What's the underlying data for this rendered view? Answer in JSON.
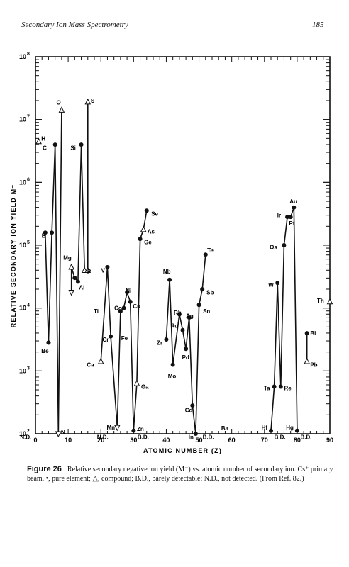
{
  "header": {
    "title": "Secondary Ion Mass Spectrometry",
    "page": "185"
  },
  "caption": {
    "label": "Figure 26",
    "text": "Relative secondary negative ion yield (M⁻) vs. atomic number of secondary ion. Cs⁺ primary beam. •, pure element; △, compound; B.D., barely detectable; N.D., not detected. (From Ref. 82.)"
  },
  "chart_data": {
    "type": "line",
    "xlabel": "ATOMIC NUMBER (Z)",
    "ylabel": "RELATIVE SECONDARY ION YIELD M⁻",
    "xlim": [
      0,
      90
    ],
    "ylim_exp": [
      2,
      8
    ],
    "yscale": "log",
    "x_ticks": [
      0,
      10,
      20,
      30,
      40,
      50,
      60,
      70,
      80,
      90
    ],
    "y_ticks": [
      {
        "base": "10",
        "exp": "2"
      },
      {
        "base": "10",
        "exp": "3"
      },
      {
        "base": "10",
        "exp": "4"
      },
      {
        "base": "10",
        "exp": "5"
      },
      {
        "base": "10",
        "exp": "6"
      },
      {
        "base": "10",
        "exp": "7"
      },
      {
        "base": "10",
        "exp": "8"
      }
    ],
    "series": [
      {
        "points": [
          {
            "z": 4,
            "logy": 3.45,
            "m": "dot"
          },
          {
            "z": 5,
            "logy": 5.2,
            "m": "dot"
          },
          {
            "z": 6,
            "logy": 6.6,
            "m": "dot"
          },
          {
            "z": 7,
            "logy": 2.0,
            "m": "down"
          },
          {
            "z": 8,
            "logy": 7.15,
            "m": "tri"
          }
        ]
      },
      {
        "points": [
          {
            "z": 3,
            "logy": 5.2,
            "m": "dot"
          },
          {
            "z": 4,
            "logy": 3.45,
            "m": "dot"
          }
        ]
      },
      {
        "points": [
          {
            "z": 11,
            "logy": 4.65,
            "m": "tri"
          },
          {
            "z": 11,
            "logy": 4.25,
            "m": "down"
          }
        ]
      },
      {
        "points": [
          {
            "z": 11,
            "logy": 4.65,
            "m": "tri"
          },
          {
            "z": 12,
            "logy": 4.48,
            "m": "dot"
          },
          {
            "z": 13,
            "logy": 4.42,
            "m": "dot"
          },
          {
            "z": 14,
            "logy": 6.6,
            "m": "dot"
          },
          {
            "z": 15,
            "logy": 4.6,
            "m": "tri"
          }
        ]
      },
      {
        "points": [
          {
            "z": 16,
            "logy": 7.28,
            "m": "tri"
          },
          {
            "z": 16,
            "logy": 4.6,
            "m": "tri"
          }
        ]
      },
      {
        "points": [
          {
            "z": 20,
            "logy": 3.15,
            "m": "tri"
          },
          {
            "z": 22,
            "logy": 4.65,
            "m": "dot"
          },
          {
            "z": 23,
            "logy": 3.55,
            "m": "dot"
          },
          {
            "z": 25,
            "logy": 2.1,
            "m": "down"
          },
          {
            "z": 26,
            "logy": 3.95,
            "m": "dot"
          },
          {
            "z": 27,
            "logy": 4.0,
            "m": "dot"
          },
          {
            "z": 28,
            "logy": 4.25,
            "m": "dot"
          },
          {
            "z": 29,
            "logy": 4.1,
            "m": "dot"
          },
          {
            "z": 30,
            "logy": 2.05,
            "m": "dot"
          },
          {
            "z": 31,
            "logy": 2.8,
            "m": "tri"
          },
          {
            "z": 32,
            "logy": 5.1,
            "m": "dot"
          },
          {
            "z": 33,
            "logy": 5.25,
            "m": "tri"
          },
          {
            "z": 34,
            "logy": 5.55,
            "m": "dot"
          }
        ]
      },
      {
        "points": [
          {
            "z": 40,
            "logy": 3.5,
            "m": "dot"
          },
          {
            "z": 41,
            "logy": 4.45,
            "m": "dot"
          },
          {
            "z": 42,
            "logy": 3.1,
            "m": "dot"
          },
          {
            "z": 44,
            "logy": 3.9,
            "m": "dot"
          },
          {
            "z": 45,
            "logy": 3.65,
            "m": "dot"
          },
          {
            "z": 46,
            "logy": 3.35,
            "m": "dot"
          },
          {
            "z": 47,
            "logy": 3.85,
            "m": "dot"
          },
          {
            "z": 48,
            "logy": 2.45,
            "m": "dot"
          },
          {
            "z": 49,
            "logy": 2.0,
            "m": "dot"
          },
          {
            "z": 50,
            "logy": 4.05,
            "m": "dot"
          },
          {
            "z": 51,
            "logy": 4.3,
            "m": "dot"
          },
          {
            "z": 52,
            "logy": 4.85,
            "m": "dot"
          }
        ]
      },
      {
        "points": [
          {
            "z": 72,
            "logy": 2.05,
            "m": "dot"
          },
          {
            "z": 73,
            "logy": 2.75,
            "m": "dot"
          },
          {
            "z": 74,
            "logy": 4.4,
            "m": "dot"
          },
          {
            "z": 75,
            "logy": 2.75,
            "m": "dot"
          },
          {
            "z": 76,
            "logy": 5.0,
            "m": "dot"
          },
          {
            "z": 77,
            "logy": 5.45,
            "m": "dot"
          },
          {
            "z": 78,
            "logy": 5.45,
            "m": "dot"
          },
          {
            "z": 79,
            "logy": 5.6,
            "m": "dot"
          },
          {
            "z": 80,
            "logy": 2.05,
            "m": "dot"
          }
        ]
      },
      {
        "points": [
          {
            "z": 83,
            "logy": 3.6,
            "m": "dot"
          },
          {
            "z": 83,
            "logy": 3.15,
            "m": "tri"
          }
        ]
      },
      {
        "points": [
          {
            "z": 90,
            "logy": 4.1,
            "m": "tri"
          }
        ]
      },
      {
        "points": [
          {
            "z": 1,
            "logy": 6.65,
            "m": "tri"
          }
        ]
      }
    ],
    "annotations": [
      {
        "text": "H",
        "z": 1.8,
        "logy": 6.7
      },
      {
        "text": "C",
        "z": 2.2,
        "logy": 6.55
      },
      {
        "text": "O",
        "z": 6.4,
        "logy": 7.27
      },
      {
        "text": "S",
        "z": 16.9,
        "logy": 7.3
      },
      {
        "text": "Si",
        "z": 10.7,
        "logy": 6.55
      },
      {
        "text": "B",
        "z": 1.9,
        "logy": 5.15
      },
      {
        "text": "Be",
        "z": 1.8,
        "logy": 3.32
      },
      {
        "text": "N.D.",
        "z": -4.7,
        "logy": 1.95
      },
      {
        "text": "N",
        "z": 7.8,
        "logy": 2.03
      },
      {
        "text": "Mg",
        "z": 8.5,
        "logy": 4.8
      },
      {
        "text": "P",
        "z": 15.8,
        "logy": 4.58
      },
      {
        "text": "Al",
        "z": 13.3,
        "logy": 4.33
      },
      {
        "text": "V",
        "z": 20.1,
        "logy": 4.6
      },
      {
        "text": "Ti",
        "z": 17.8,
        "logy": 3.95
      },
      {
        "text": "Cr",
        "z": 20.5,
        "logy": 3.5
      },
      {
        "text": "Ca",
        "z": 15.7,
        "logy": 3.1
      },
      {
        "text": "Co",
        "z": 24.1,
        "logy": 4.0
      },
      {
        "text": "Ni",
        "z": 27.6,
        "logy": 4.28
      },
      {
        "text": "Cu",
        "z": 29.8,
        "logy": 4.03
      },
      {
        "text": "Fe",
        "z": 26.2,
        "logy": 3.52
      },
      {
        "text": "Se",
        "z": 35.4,
        "logy": 5.5
      },
      {
        "text": "As",
        "z": 34.2,
        "logy": 5.22
      },
      {
        "text": "Ge",
        "z": 33.2,
        "logy": 5.05
      },
      {
        "text": "Ga",
        "z": 32.3,
        "logy": 2.75
      },
      {
        "text": "Mn",
        "z": 21.8,
        "logy": 2.1
      },
      {
        "text": "N.D.",
        "z": 18.8,
        "logy": 1.95
      },
      {
        "text": "Zn",
        "z": 31.0,
        "logy": 2.08
      },
      {
        "text": "B.D.",
        "z": 31.2,
        "logy": 1.95
      },
      {
        "text": "Nb",
        "z": 39.0,
        "logy": 4.58
      },
      {
        "text": "Rh",
        "z": 42.3,
        "logy": 3.93
      },
      {
        "text": "Ru",
        "z": 41.3,
        "logy": 3.72
      },
      {
        "text": "Ag",
        "z": 46.0,
        "logy": 3.88
      },
      {
        "text": "Sn",
        "z": 51.2,
        "logy": 3.95
      },
      {
        "text": "Sb",
        "z": 52.3,
        "logy": 4.25
      },
      {
        "text": "Te",
        "z": 52.5,
        "logy": 4.92
      },
      {
        "text": "Zr",
        "z": 37.1,
        "logy": 3.45
      },
      {
        "text": "Pd",
        "z": 44.8,
        "logy": 3.22
      },
      {
        "text": "Mo",
        "z": 40.5,
        "logy": 2.92
      },
      {
        "text": "Cd",
        "z": 45.7,
        "logy": 2.38
      },
      {
        "text": "In",
        "z": 46.8,
        "logy": 1.95
      },
      {
        "text": "B.D.",
        "z": 51.1,
        "logy": 1.95
      },
      {
        "text": "Ba",
        "z": 56.8,
        "logy": 2.09
      },
      {
        "text": "Au",
        "z": 77.7,
        "logy": 5.7
      },
      {
        "text": "Ir",
        "z": 73.9,
        "logy": 5.48
      },
      {
        "text": "Pt",
        "z": 77.5,
        "logy": 5.35
      },
      {
        "text": "Os",
        "z": 71.6,
        "logy": 4.97
      },
      {
        "text": "W",
        "z": 71.2,
        "logy": 4.37
      },
      {
        "text": "Ta",
        "z": 69.8,
        "logy": 2.73
      },
      {
        "text": "Re",
        "z": 76.0,
        "logy": 2.73
      },
      {
        "text": "Hf",
        "z": 69.1,
        "logy": 2.1
      },
      {
        "text": "Hg",
        "z": 76.6,
        "logy": 2.1
      },
      {
        "text": "B.D.",
        "z": 73.0,
        "logy": 1.95
      },
      {
        "text": "B.D.",
        "z": 81.0,
        "logy": 1.95
      },
      {
        "text": "Bi",
        "z": 84.0,
        "logy": 3.6
      },
      {
        "text": "Pb",
        "z": 84.0,
        "logy": 3.1
      },
      {
        "text": "Th",
        "z": 86.1,
        "logy": 4.12
      }
    ]
  }
}
